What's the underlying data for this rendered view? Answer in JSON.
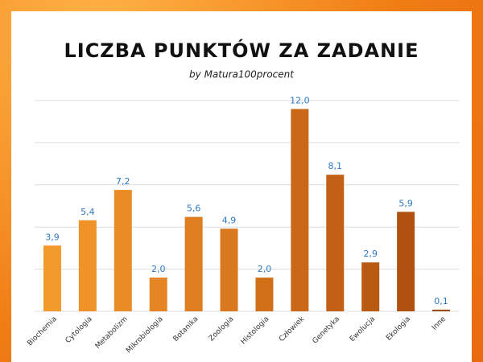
{
  "chart_data": {
    "type": "bar",
    "title": "LICZBA PUNKTÓW ZA ZADANIE",
    "subtitle": "by Matura100procent",
    "categories": [
      "Biochemia",
      "Cytologia",
      "Metabolizm",
      "Mikrobiologia",
      "Botanika",
      "Zoologia",
      "Histologia",
      "Człowiek",
      "Genetyka",
      "Ewolucja",
      "Ekologia",
      "Inne"
    ],
    "values": [
      3.9,
      5.4,
      7.2,
      2.0,
      5.6,
      4.9,
      2.0,
      12.0,
      8.1,
      2.9,
      5.9,
      0.1
    ],
    "value_labels": [
      "3,9",
      "5,4",
      "7,2",
      "2,0",
      "5,6",
      "4,9",
      "2,0",
      "12,0",
      "8,1",
      "2,9",
      "5,9",
      "0,1"
    ],
    "colors": [
      "#f39a2c",
      "#ef9329",
      "#ea8c26",
      "#e58523",
      "#df7e20",
      "#d9781d",
      "#d2701a",
      "#cb6817",
      "#c26115",
      "#b95a13",
      "#af5211",
      "#a04a10"
    ],
    "ylim": [
      0,
      12.5
    ],
    "yticks": [
      0,
      2.5,
      5,
      7.5,
      10,
      12.5
    ],
    "grid": true
  }
}
